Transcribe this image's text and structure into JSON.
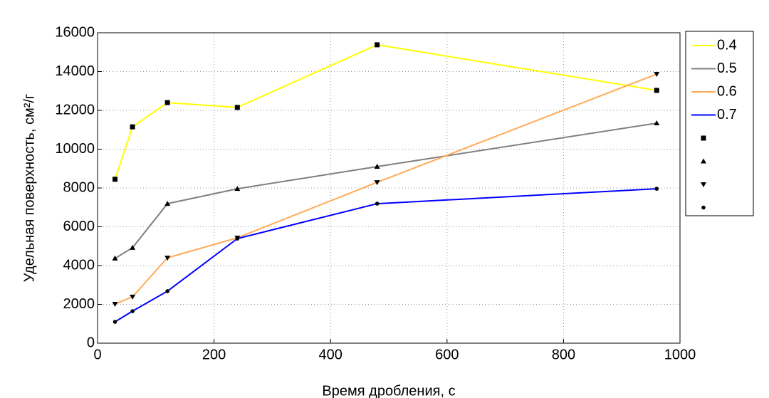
{
  "chart_data": {
    "type": "line",
    "x_label": "Время дробления, с",
    "y_label": "Удельная поверхность, см²/г",
    "x": [
      30,
      60,
      120,
      240,
      480,
      960
    ],
    "series": [
      {
        "name": "0.4",
        "color": "#ffff00",
        "marker": "square",
        "values": [
          8450,
          11150,
          12400,
          12150,
          15380,
          13030
        ]
      },
      {
        "name": "0.5",
        "color": "#808080",
        "marker": "triangle-up",
        "values": [
          4370,
          4920,
          7190,
          7960,
          9100,
          11340
        ]
      },
      {
        "name": "0.6",
        "color": "#ffaa55",
        "marker": "triangle-down",
        "values": [
          2020,
          2390,
          4400,
          5430,
          8290,
          13870
        ]
      },
      {
        "name": "0.7",
        "color": "#0000ff",
        "marker": "circle",
        "values": [
          1100,
          1650,
          2680,
          5390,
          7190,
          7960
        ]
      }
    ],
    "xlim": [
      0,
      1000
    ],
    "xticks": [
      0,
      200,
      400,
      600,
      800,
      1000
    ],
    "ylim": [
      0,
      16000
    ],
    "yticks": [
      0,
      2000,
      4000,
      6000,
      8000,
      10000,
      12000,
      14000,
      16000
    ],
    "grid": true,
    "legend": "outside-right"
  }
}
